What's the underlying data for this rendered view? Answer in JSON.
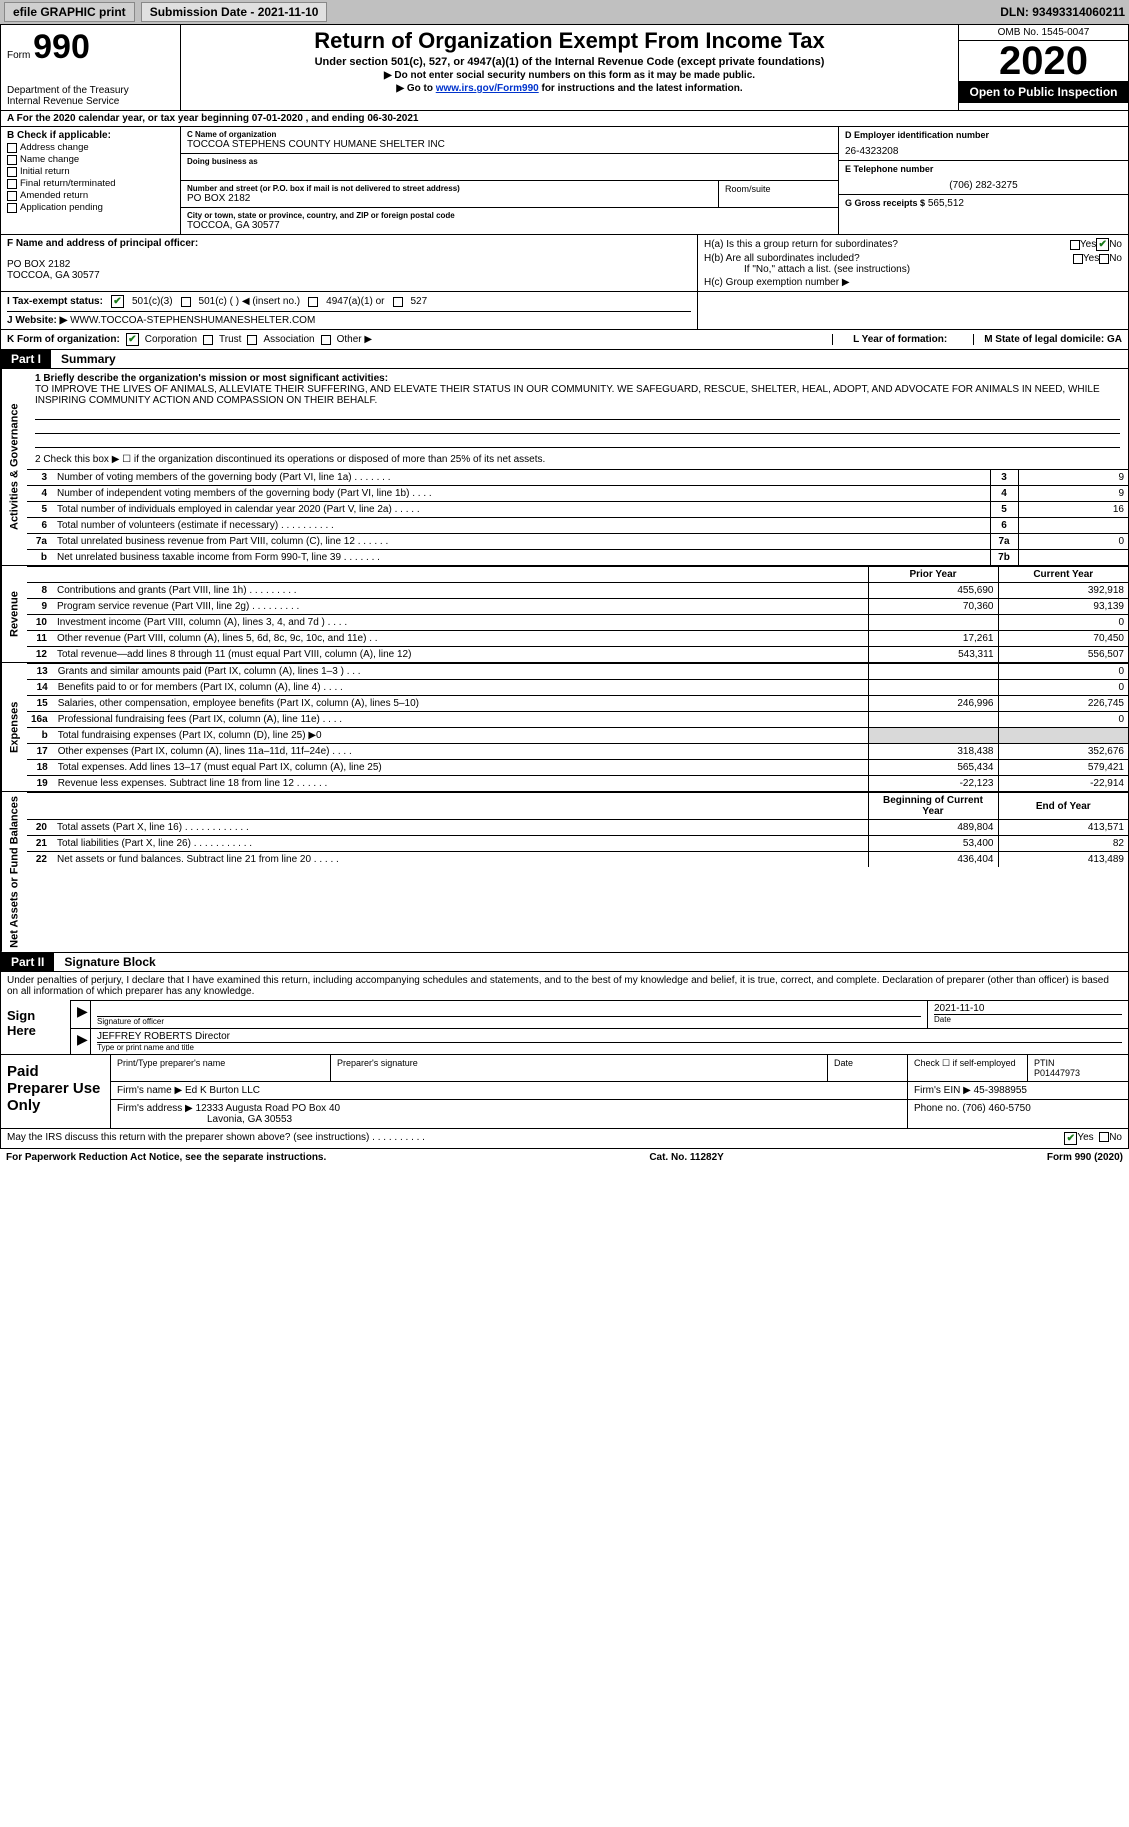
{
  "topbar": {
    "efile_btn": "efile GRAPHIC print",
    "submission_label": "Submission Date - 2021-11-10",
    "dln": "DLN: 93493314060211"
  },
  "header": {
    "form_word": "Form",
    "form_no": "990",
    "dept1": "Department of the Treasury",
    "dept2": "Internal Revenue Service",
    "title": "Return of Organization Exempt From Income Tax",
    "sub": "Under section 501(c), 527, or 4947(a)(1) of the Internal Revenue Code (except private foundations)",
    "note1": "▶ Do not enter social security numbers on this form as it may be made public.",
    "note2_pre": "▶ Go to ",
    "note2_link": "www.irs.gov/Form990",
    "note2_post": " for instructions and the latest information.",
    "omb": "OMB No. 1545-0047",
    "year": "2020",
    "inspect": "Open to Public Inspection"
  },
  "calendar_line": "A For the 2020 calendar year, or tax year beginning 07-01-2020    , and ending 06-30-2021",
  "block_b": {
    "label": "B Check if applicable:",
    "items": [
      "Address change",
      "Name change",
      "Initial return",
      "Final return/terminated",
      "Amended return",
      "Application pending"
    ]
  },
  "block_c": {
    "label": "C Name of organization",
    "name": "TOCCOA STEPHENS COUNTY HUMANE SHELTER INC",
    "dba_label": "Doing business as",
    "addr_label": "Number and street (or P.O. box if mail is not delivered to street address)",
    "addr": "PO BOX 2182",
    "room_label": "Room/suite",
    "city_label": "City or town, state or province, country, and ZIP or foreign postal code",
    "city": "TOCCOA, GA  30577"
  },
  "block_d": {
    "label": "D Employer identification number",
    "val": "26-4323208"
  },
  "block_e": {
    "label": "E Telephone number",
    "val": "(706) 282-3275"
  },
  "block_g": {
    "label": "G Gross receipts $",
    "val": "565,512"
  },
  "block_f": {
    "label": "F  Name and address of principal officer:",
    "addr1": "PO BOX 2182",
    "addr2": "TOCCOA, GA  30577"
  },
  "block_h": {
    "a": "H(a)  Is this a group return for subordinates?",
    "a_yes": "Yes",
    "a_no": "No",
    "b": "H(b)  Are all subordinates included?",
    "b_yes": "Yes",
    "b_no": "No",
    "note": "If \"No,\" attach a list. (see instructions)",
    "c": "H(c)  Group exemption number ▶"
  },
  "line_i": {
    "label": "I  Tax-exempt status:",
    "opts": [
      "501(c)(3)",
      "501(c) (  ) ◀ (insert no.)",
      "4947(a)(1) or",
      "527"
    ]
  },
  "line_j": {
    "label": "J  Website: ▶",
    "val": "WWW.TOCCOA-STEPHENSHUMANESHELTER.COM"
  },
  "line_k": {
    "label": "K Form of organization:",
    "opts": [
      "Corporation",
      "Trust",
      "Association",
      "Other ▶"
    ],
    "l_label": "L Year of formation:",
    "m_label": "M State of legal domicile: GA"
  },
  "part1": {
    "tag": "Part I",
    "title": "Summary"
  },
  "side_labels": {
    "gov": "Activities & Governance",
    "rev": "Revenue",
    "exp": "Expenses",
    "net": "Net Assets or Fund Balances"
  },
  "summary": {
    "line1_label": "1   Briefly describe the organization's mission or most significant activities:",
    "line1_text": "TO IMPROVE THE LIVES OF ANIMALS, ALLEVIATE THEIR SUFFERING, AND ELEVATE THEIR STATUS IN OUR COMMUNITY. WE SAFEGUARD, RESCUE, SHELTER, HEAL, ADOPT, AND ADVOCATE FOR ANIMALS IN NEED, WHILE INSPIRING COMMUNITY ACTION AND COMPASSION ON THEIR BEHALF.",
    "line2": "2   Check this box ▶ ☐  if the organization discontinued its operations or disposed of more than 25% of its net assets.",
    "rows_gov": [
      {
        "n": "3",
        "label": "Number of voting members of the governing body (Part VI, line 1a)  .   .   .   .   .   .   .",
        "box": "3",
        "val": "9"
      },
      {
        "n": "4",
        "label": "Number of independent voting members of the governing body (Part VI, line 1b)  .   .   .   .",
        "box": "4",
        "val": "9"
      },
      {
        "n": "5",
        "label": "Total number of individuals employed in calendar year 2020 (Part V, line 2a)  .   .   .   .   .",
        "box": "5",
        "val": "16"
      },
      {
        "n": "6",
        "label": "Total number of volunteers (estimate if necessary)   .    .    .    .    .    .    .    .    .    .",
        "box": "6",
        "val": ""
      },
      {
        "n": "7a",
        "label": "Total unrelated business revenue from Part VIII, column (C), line 12   .    .    .    .    .    .",
        "box": "7a",
        "val": "0"
      },
      {
        "n": "b",
        "label": "Net unrelated business taxable income from Form 990-T, line 39   .    .    .    .    .    .    .",
        "box": "7b",
        "val": ""
      }
    ],
    "hdr_prior": "Prior Year",
    "hdr_current": "Current Year",
    "rows_rev": [
      {
        "n": "8",
        "label": "Contributions and grants (Part VIII, line 1h)   .    .    .    .    .    .    .    .    .",
        "py": "455,690",
        "cy": "392,918"
      },
      {
        "n": "9",
        "label": "Program service revenue (Part VIII, line 2g)   .    .    .    .    .    .    .    .    .",
        "py": "70,360",
        "cy": "93,139"
      },
      {
        "n": "10",
        "label": "Investment income (Part VIII, column (A), lines 3, 4, and 7d )   .    .    .    .",
        "py": "",
        "cy": "0"
      },
      {
        "n": "11",
        "label": "Other revenue (Part VIII, column (A), lines 5, 6d, 8c, 9c, 10c, and 11e)   .    .",
        "py": "17,261",
        "cy": "70,450"
      },
      {
        "n": "12",
        "label": "Total revenue—add lines 8 through 11 (must equal Part VIII, column (A), line 12)",
        "py": "543,311",
        "cy": "556,507"
      }
    ],
    "rows_exp": [
      {
        "n": "13",
        "label": "Grants and similar amounts paid (Part IX, column (A), lines 1–3 ) .    .    .",
        "py": "",
        "cy": "0"
      },
      {
        "n": "14",
        "label": "Benefits paid to or for members (Part IX, column (A), line 4)  .    .    .    .",
        "py": "",
        "cy": "0"
      },
      {
        "n": "15",
        "label": "Salaries, other compensation, employee benefits (Part IX, column (A), lines 5–10)",
        "py": "246,996",
        "cy": "226,745"
      },
      {
        "n": "16a",
        "label": "Professional fundraising fees (Part IX, column (A), line 11e)  .    .    .    .",
        "py": "",
        "cy": "0"
      },
      {
        "n": "b",
        "label": "Total fundraising expenses (Part IX, column (D), line 25) ▶0",
        "py": "GREY",
        "cy": "GREY"
      },
      {
        "n": "17",
        "label": "Other expenses (Part IX, column (A), lines 11a–11d, 11f–24e)  .    .    .    .",
        "py": "318,438",
        "cy": "352,676"
      },
      {
        "n": "18",
        "label": "Total expenses. Add lines 13–17 (must equal Part IX, column (A), line 25)",
        "py": "565,434",
        "cy": "579,421"
      },
      {
        "n": "19",
        "label": "Revenue less expenses. Subtract line 18 from line 12   .    .    .    .    .    .",
        "py": "-22,123",
        "cy": "-22,914"
      }
    ],
    "hdr_begin": "Beginning of Current Year",
    "hdr_end": "End of Year",
    "rows_net": [
      {
        "n": "20",
        "label": "Total assets (Part X, line 16)  .    .    .    .    .    .    .    .    .    .    .    .",
        "py": "489,804",
        "cy": "413,571"
      },
      {
        "n": "21",
        "label": "Total liabilities (Part X, line 26)  .    .    .    .    .    .    .    .    .    .    .",
        "py": "53,400",
        "cy": "82"
      },
      {
        "n": "22",
        "label": "Net assets or fund balances. Subtract line 21 from line 20  .    .    .    .    .",
        "py": "436,404",
        "cy": "413,489"
      }
    ]
  },
  "part2": {
    "tag": "Part II",
    "title": "Signature Block"
  },
  "sig": {
    "declaration": "Under penalties of perjury, I declare that I have examined this return, including accompanying schedules and statements, and to the best of my knowledge and belief, it is true, correct, and complete. Declaration of preparer (other than officer) is based on all information of which preparer has any knowledge.",
    "sign_here": "Sign Here",
    "sig_officer_lbl": "Signature of officer",
    "date_val": "2021-11-10",
    "date_lbl": "Date",
    "name_val": "JEFFREY ROBERTS Director",
    "name_lbl": "Type or print name and title"
  },
  "prep": {
    "left": "Paid Preparer Use Only",
    "h1": "Print/Type preparer's name",
    "h2": "Preparer's signature",
    "h3": "Date",
    "h4_a": "Check ☐ if self-employed",
    "h4_b": "PTIN",
    "ptin": "P01447973",
    "firm_name_lbl": "Firm's name    ▶",
    "firm_name": "Ed K Burton LLC",
    "firm_ein_lbl": "Firm's EIN ▶",
    "firm_ein": "45-3988955",
    "firm_addr_lbl": "Firm's address ▶",
    "firm_addr1": "12333 Augusta Road PO Box 40",
    "firm_addr2": "Lavonia, GA  30553",
    "phone_lbl": "Phone no.",
    "phone": "(706) 460-5750"
  },
  "discuss": {
    "text": "May the IRS discuss this return with the preparer shown above? (see instructions)   .    .    .    .    .    .    .    .    .    .",
    "yes": "Yes",
    "no": "No"
  },
  "footer": {
    "left": "For Paperwork Reduction Act Notice, see the separate instructions.",
    "mid": "Cat. No. 11282Y",
    "right": "Form 990 (2020)"
  }
}
